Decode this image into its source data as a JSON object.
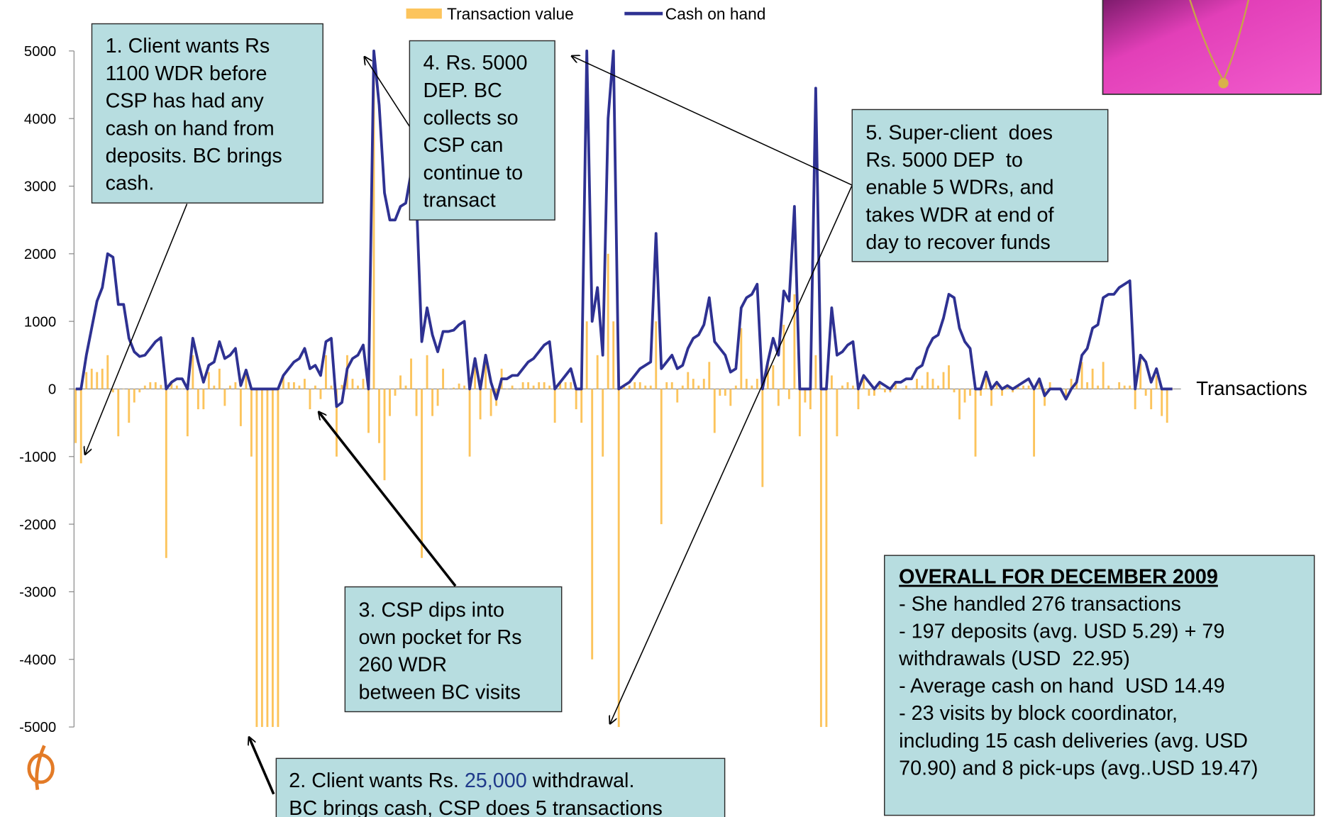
{
  "chart_data": {
    "type": "bar-line",
    "legend": "top",
    "x_axis_label": "Transactions",
    "ylim": [
      -5000,
      5000
    ],
    "yticks": [
      -5000,
      -4000,
      -3000,
      -2000,
      -1000,
      0,
      1000,
      2000,
      3000,
      4000,
      5000
    ],
    "grid": false,
    "series": [
      {
        "name": "Transaction value",
        "type": "bar",
        "color": "#fcc45c",
        "values": [
          -800,
          -1100,
          250,
          300,
          250,
          300,
          500,
          -50,
          -700,
          0,
          -500,
          -200,
          -50,
          50,
          100,
          100,
          60,
          -2500,
          100,
          50,
          0,
          -700,
          500,
          -300,
          -300,
          250,
          50,
          300,
          -250,
          50,
          100,
          -550,
          230,
          -1000,
          -5000,
          -5000,
          -5000,
          -5000,
          -5000,
          200,
          100,
          100,
          50,
          150,
          -300,
          50,
          -150,
          500,
          50,
          -1000,
          60,
          500,
          150,
          50,
          150,
          -650,
          5000,
          -800,
          -1350,
          -400,
          -100,
          200,
          50,
          450,
          -400,
          -2500,
          500,
          -400,
          -250,
          300,
          0,
          20,
          80,
          50,
          -1000,
          450,
          -450,
          500,
          -400,
          -250,
          300,
          0,
          50,
          0,
          100,
          100,
          50,
          100,
          100,
          50,
          -500,
          100,
          100,
          100,
          -300,
          -500,
          1000,
          -4000,
          500,
          -1000,
          2000,
          1000,
          -5000,
          50,
          50,
          100,
          100,
          50,
          50,
          1000,
          -2000,
          100,
          100,
          -200,
          50,
          250,
          150,
          50,
          150,
          400,
          -650,
          -100,
          -100,
          -250,
          50,
          900,
          150,
          50,
          150,
          -1450,
          400,
          350,
          -250,
          950,
          -150,
          1400,
          -700,
          -200,
          -300,
          500,
          -5000,
          -5000,
          200,
          -700,
          50,
          100,
          50,
          -300,
          200,
          -100,
          -100,
          100,
          -50,
          -50,
          100,
          0,
          50,
          0,
          150,
          50,
          250,
          150,
          50,
          250,
          350,
          -50,
          -450,
          -200,
          -100,
          -1000,
          -100,
          250,
          -250,
          100,
          -100,
          50,
          -50,
          50,
          50,
          50,
          -1000,
          150,
          -250,
          100,
          0,
          0,
          -150,
          150,
          100,
          400,
          100,
          300,
          50,
          400,
          50,
          0,
          100,
          50,
          50,
          -300,
          500,
          -100,
          -300,
          200,
          -400,
          -500,
          0
        ]
      },
      {
        "name": "Cash on hand",
        "type": "line",
        "color": "#2e3192",
        "values": [
          0,
          0,
          500,
          900,
          1300,
          1500,
          2000,
          1950,
          1250,
          1250,
          750,
          550,
          480,
          500,
          600,
          700,
          760,
          0,
          100,
          150,
          150,
          0,
          750,
          400,
          100,
          350,
          400,
          700,
          450,
          500,
          600,
          50,
          280,
          0,
          0,
          0,
          0,
          0,
          0,
          200,
          300,
          400,
          450,
          600,
          300,
          350,
          200,
          700,
          750,
          -260,
          -200,
          300,
          450,
          500,
          650,
          0,
          5000,
          4200,
          2900,
          2500,
          2500,
          2700,
          2750,
          3200,
          2800,
          700,
          1200,
          800,
          550,
          850,
          850,
          870,
          950,
          1000,
          0,
          450,
          0,
          500,
          100,
          -150,
          150,
          150,
          200,
          200,
          300,
          400,
          450,
          550,
          650,
          700,
          0,
          100,
          200,
          300,
          0,
          0,
          5000,
          1000,
          1500,
          500,
          4000,
          5000,
          0,
          50,
          100,
          200,
          300,
          350,
          400,
          2300,
          300,
          400,
          500,
          300,
          350,
          600,
          750,
          800,
          950,
          1350,
          700,
          600,
          500,
          250,
          300,
          1200,
          1350,
          1400,
          1550,
          0,
          400,
          750,
          500,
          1450,
          1300,
          2700,
          0,
          0,
          0,
          4450,
          0,
          0,
          1200,
          500,
          550,
          650,
          700,
          0,
          200,
          100,
          0,
          100,
          50,
          0,
          100,
          100,
          150,
          150,
          300,
          350,
          600,
          750,
          800,
          1050,
          1400,
          1350,
          900,
          700,
          600,
          0,
          0,
          250,
          0,
          100,
          0,
          50,
          0,
          50,
          100,
          150,
          0,
          150,
          -100,
          0,
          0,
          0,
          -150,
          0,
          100,
          500,
          600,
          900,
          950,
          1350,
          1400,
          1400,
          1500,
          1550,
          1600,
          0,
          500,
          400,
          100,
          300,
          0,
          0,
          0
        ]
      }
    ],
    "annotations": [
      {
        "lines": [
          "1. Client wants Rs",
          "1100 WDR before",
          "CSP has had any",
          "cash on hand from",
          "deposits. BC brings",
          "cash."
        ]
      },
      {
        "lines": [
          [
            "2. Client wants Rs. ",
            "25,000",
            " withdrawal."
          ],
          "BC brings cash, CSP does 5 transactions"
        ]
      },
      {
        "lines": [
          "3. CSP dips into",
          "own pocket for Rs",
          "260 WDR",
          "between BC visits"
        ]
      },
      {
        "lines": [
          "4. Rs. 5000",
          "DEP. BC",
          "collects so",
          "CSP can",
          "continue to",
          "transact"
        ]
      },
      {
        "lines": [
          "5. Super-client  does",
          "Rs. 5000 DEP  to",
          "enable 5 WDRs, and",
          "takes WDR at end of",
          "day to recover funds"
        ]
      }
    ],
    "summary": {
      "title": "OVERALL FOR DECEMBER 2009",
      "lines": [
        "- She handled 276 transactions",
        "- 197 deposits (avg. USD 5.29) + 79",
        "withdrawals (USD  22.95)",
        "- Average cash on hand  USD 14.49",
        "- 23 visits by block coordinator,",
        "including 15 cash deliveries (avg. USD",
        "70.90) and 8 pick-ups (avg..USD 19.47)"
      ]
    },
    "logo": "CGAP"
  }
}
